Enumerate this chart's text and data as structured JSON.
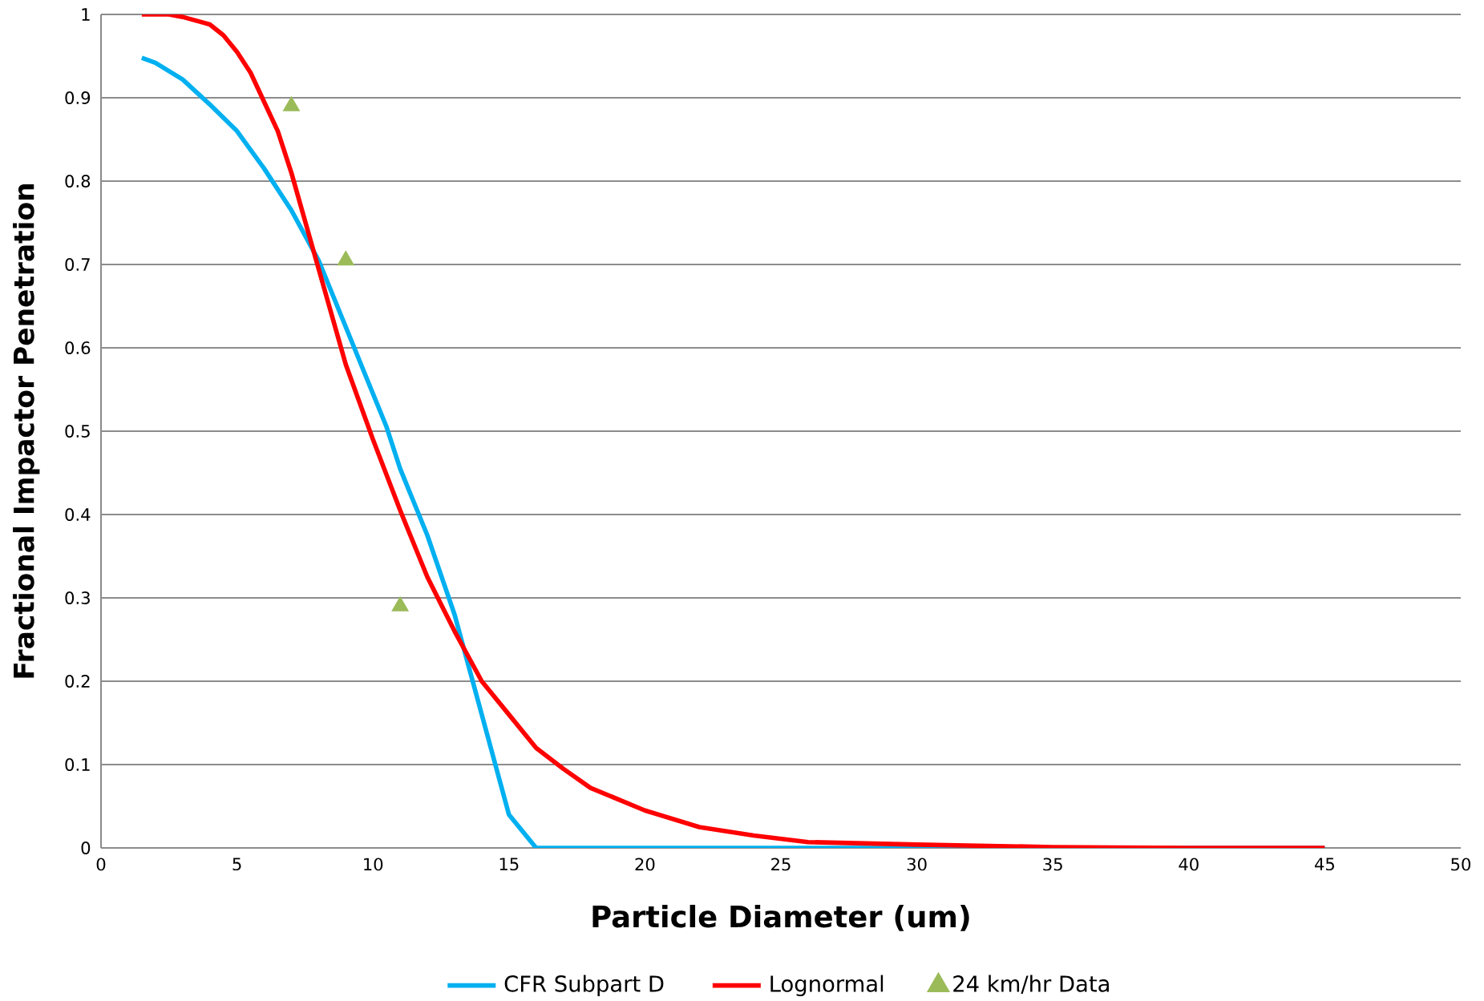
{
  "chart_data": {
    "type": "line",
    "xlabel": "Particle Diameter (um)",
    "ylabel": "Fractional Impactor Penetration",
    "xlim": [
      0,
      50
    ],
    "ylim": [
      0,
      1
    ],
    "xticks": [
      0,
      5,
      10,
      15,
      20,
      25,
      30,
      35,
      40,
      45,
      50
    ],
    "yticks": [
      0,
      0.1,
      0.2,
      0.3,
      0.4,
      0.5,
      0.6,
      0.7,
      0.8,
      0.9,
      1
    ],
    "grid": "y",
    "legend": "bottom",
    "series": [
      {
        "name": "CFR Subpart D",
        "color": "#00b0f0",
        "x": [
          1.5,
          2,
          3,
          4,
          5,
          6,
          7,
          8,
          9,
          10,
          10.5,
          11,
          12,
          13,
          14,
          15,
          16,
          20,
          30,
          45
        ],
        "values": [
          0.948,
          0.942,
          0.922,
          0.892,
          0.86,
          0.815,
          0.765,
          0.705,
          0.625,
          0.545,
          0.505,
          0.455,
          0.375,
          0.28,
          0.16,
          0.04,
          0,
          0,
          0,
          0
        ]
      },
      {
        "name": "Lognormal",
        "color": "#ff0000",
        "x": [
          1.5,
          2,
          2.5,
          3,
          4,
          4.5,
          5,
          5.5,
          6,
          6.5,
          7,
          8,
          9,
          10,
          11,
          12,
          13,
          14,
          15,
          16,
          17,
          18,
          20,
          22,
          24,
          26,
          30,
          35,
          40,
          45
        ],
        "values": [
          1,
          1,
          1,
          0.997,
          0.988,
          0.975,
          0.955,
          0.93,
          0.895,
          0.86,
          0.81,
          0.695,
          0.58,
          0.49,
          0.405,
          0.325,
          0.26,
          0.2,
          0.16,
          0.12,
          0.095,
          0.072,
          0.045,
          0.025,
          0.015,
          0.007,
          0.004,
          0.001,
          0,
          0
        ]
      },
      {
        "name": "24 km/hr Data",
        "type": "scatter",
        "marker": "triangle",
        "color": "#9bbb59",
        "x": [
          7,
          9,
          11
        ],
        "values": [
          0.89,
          0.705,
          0.29
        ]
      }
    ]
  }
}
